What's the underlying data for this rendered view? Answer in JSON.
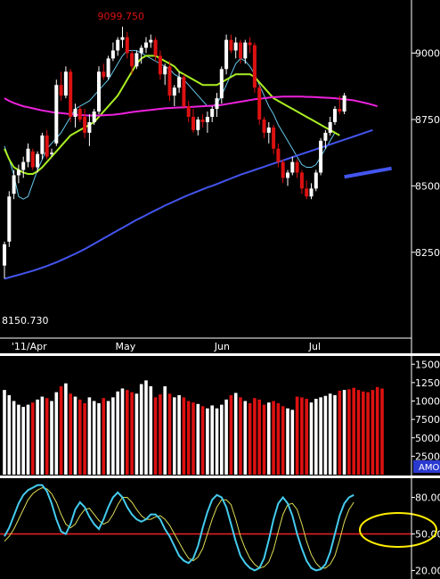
{
  "colors": {
    "background": "#000000",
    "bull": "#ffffff",
    "bear": "#dd1111",
    "ma_fast": "#66c8ee",
    "ma_mid": "#aaee22",
    "ma_slow": "#ee22dd",
    "ma_long": "#4455ee",
    "stoch_k": "#44ccee",
    "stoch_d": "#dddd55",
    "ref_line": "#ee2222",
    "axis_text": "#ffffff",
    "highlight": "#ffee00",
    "tag_bg": "#2a3ad0"
  },
  "chart_data": [
    {
      "type": "candlestick",
      "panel": "price",
      "x_labels": [
        "'11/Apr",
        "May",
        "Jun",
        "Jul"
      ],
      "x_label_bar_index": [
        3,
        25,
        46,
        66
      ],
      "y_ticks": [
        9000,
        8750,
        8500,
        8250
      ],
      "ylim": [
        7930,
        9200
      ],
      "annotations": {
        "high": "9099.750",
        "low": "8150.730"
      },
      "high_bar_index": 25,
      "low_bar_index": 0,
      "ohlc": [
        [
          8200,
          8290,
          8150.73,
          8280
        ],
        [
          8290,
          8480,
          8270,
          8460
        ],
        [
          8470,
          8560,
          8450,
          8540
        ],
        [
          8540,
          8580,
          8510,
          8560
        ],
        [
          8560,
          8610,
          8530,
          8590
        ],
        [
          8590,
          8660,
          8570,
          8640
        ],
        [
          8630,
          8640,
          8560,
          8570
        ],
        [
          8570,
          8630,
          8550,
          8620
        ],
        [
          8620,
          8700,
          8600,
          8690
        ],
        [
          8690,
          8710,
          8600,
          8610
        ],
        [
          8620,
          8640,
          8610,
          8625
        ],
        [
          8660,
          8900,
          8650,
          8880
        ],
        [
          8880,
          8930,
          8820,
          8840
        ],
        [
          8840,
          8950,
          8830,
          8930
        ],
        [
          8930,
          8940,
          8740,
          8760
        ],
        [
          8760,
          8810,
          8720,
          8790
        ],
        [
          8790,
          8800,
          8740,
          8750
        ],
        [
          8760,
          8790,
          8680,
          8700
        ],
        [
          8700,
          8770,
          8650,
          8740
        ],
        [
          8740,
          8790,
          8730,
          8780
        ],
        [
          8780,
          8950,
          8770,
          8930
        ],
        [
          8930,
          8960,
          8900,
          8910
        ],
        [
          8910,
          8990,
          8900,
          8980
        ],
        [
          8980,
          9040,
          8970,
          9010
        ],
        [
          9010,
          9060,
          8990,
          9050
        ],
        [
          9050,
          9099.75,
          9020,
          9060
        ],
        [
          9060,
          9080,
          8980,
          9000
        ],
        [
          9000,
          9010,
          8920,
          8950
        ],
        [
          8950,
          9010,
          8940,
          9000
        ],
        [
          9000,
          9030,
          8960,
          9020
        ],
        [
          9020,
          9060,
          9000,
          9040
        ],
        [
          9040,
          9070,
          9020,
          9050
        ],
        [
          9050,
          9060,
          8970,
          8990
        ],
        [
          8990,
          9010,
          8900,
          8920
        ],
        [
          8920,
          8960,
          8880,
          8950
        ],
        [
          8950,
          8970,
          8820,
          8840
        ],
        [
          8840,
          8880,
          8800,
          8870
        ],
        [
          8870,
          8930,
          8850,
          8910
        ],
        [
          8910,
          8920,
          8790,
          8800
        ],
        [
          8800,
          8820,
          8740,
          8760
        ],
        [
          8760,
          8790,
          8700,
          8710
        ],
        [
          8710,
          8760,
          8690,
          8750
        ],
        [
          8750,
          8770,
          8720,
          8740
        ],
        [
          8740,
          8780,
          8700,
          8760
        ],
        [
          8760,
          8800,
          8740,
          8790
        ],
        [
          8790,
          8850,
          8760,
          8830
        ],
        [
          8830,
          8950,
          8810,
          8940
        ],
        [
          8940,
          9070,
          8920,
          9050
        ],
        [
          9050,
          9070,
          9000,
          9010
        ],
        [
          9010,
          9060,
          8980,
          9040
        ],
        [
          9040,
          9050,
          8960,
          8980
        ],
        [
          8980,
          9050,
          8960,
          9040
        ],
        [
          9040,
          9060,
          9000,
          9030
        ],
        [
          9030,
          9040,
          8850,
          8870
        ],
        [
          8870,
          8880,
          8730,
          8750
        ],
        [
          8750,
          8760,
          8680,
          8700
        ],
        [
          8700,
          8740,
          8660,
          8720
        ],
        [
          8720,
          8730,
          8620,
          8640
        ],
        [
          8640,
          8660,
          8570,
          8590
        ],
        [
          8590,
          8600,
          8510,
          8530
        ],
        [
          8530,
          8560,
          8500,
          8550
        ],
        [
          8550,
          8610,
          8540,
          8590
        ],
        [
          8590,
          8600,
          8530,
          8550
        ],
        [
          8550,
          8560,
          8470,
          8490
        ],
        [
          8490,
          8520,
          8450,
          8460
        ],
        [
          8460,
          8510,
          8450,
          8490
        ],
        [
          8490,
          8560,
          8480,
          8550
        ],
        [
          8550,
          8680,
          8540,
          8670
        ],
        [
          8670,
          8710,
          8640,
          8700
        ],
        [
          8700,
          8760,
          8690,
          8740
        ],
        [
          8740,
          8800,
          8730,
          8790
        ],
        [
          8790,
          8840,
          8770,
          8780
        ],
        [
          8780,
          8850,
          8770,
          8840
        ]
      ],
      "series": [
        {
          "name": "",
          "color_key": "ma_fast",
          "start": 0,
          "values": [
            8650,
            8600,
            8540,
            8460,
            8450,
            8460,
            8510,
            8560,
            8600,
            8640,
            8660,
            8680,
            8700,
            8730,
            8760,
            8790,
            8800,
            8810,
            8820,
            8840,
            8860,
            8880,
            8900,
            8930,
            8960,
            8990,
            9010,
            9010,
            9010,
            9000,
            8990,
            8980,
            8970,
            8960,
            8950,
            8940,
            8920,
            8910,
            8900,
            8880,
            8860,
            8840,
            8820,
            8800,
            8800,
            8810,
            8840,
            8880,
            8920,
            8960,
            8980,
            8970,
            8950,
            8920,
            8880,
            8840,
            8800,
            8770,
            8730,
            8700,
            8670,
            8640,
            8610,
            8580,
            8570,
            8570,
            8580,
            8610,
            8640,
            8670,
            8700
          ]
        },
        {
          "name": "",
          "color_key": "ma_mid",
          "start": 0,
          "values": [
            8640,
            8600,
            8570,
            8560,
            8550,
            8545,
            8545,
            8555,
            8570,
            8590,
            8610,
            8630,
            8650,
            8670,
            8690,
            8700,
            8710,
            8720,
            8730,
            8740,
            8760,
            8780,
            8800,
            8820,
            8840,
            8870,
            8900,
            8930,
            8960,
            8980,
            8990,
            8990,
            8990,
            8980,
            8970,
            8960,
            8950,
            8930,
            8920,
            8910,
            8900,
            8890,
            8880,
            8880,
            8880,
            8880,
            8890,
            8900,
            8910,
            8920,
            8920,
            8920,
            8920,
            8910,
            8890,
            8870,
            8850,
            8830,
            8820,
            8810,
            8800,
            8790,
            8780,
            8770,
            8760,
            8750,
            8740,
            8730,
            8720,
            8710,
            8700,
            8690
          ]
        },
        {
          "name": "",
          "color_key": "ma_slow",
          "start": 0,
          "values": [
            8830,
            8820,
            8812,
            8806,
            8800,
            8796,
            8792,
            8788,
            8784,
            8781,
            8778,
            8776,
            8774,
            8772,
            8770,
            8768,
            8767,
            8766,
            8765,
            8765,
            8765,
            8766,
            8767,
            8768,
            8770,
            8772,
            8775,
            8778,
            8780,
            8782,
            8784,
            8786,
            8788,
            8790,
            8792,
            8793,
            8794,
            8795,
            8796,
            8797,
            8798,
            8799,
            8800,
            8801,
            8802,
            8803,
            8805,
            8808,
            8811,
            8814,
            8817,
            8820,
            8823,
            8826,
            8828,
            8830,
            8832,
            8834,
            8835,
            8836,
            8836,
            8836,
            8836,
            8836,
            8835,
            8835,
            8834,
            8833,
            8832,
            8831,
            8830,
            8828,
            8826,
            8824,
            8822,
            8818,
            8814,
            8810,
            8805,
            8800
          ]
        },
        {
          "name": "",
          "color_key": "ma_long",
          "start": 0,
          "values": [
            8150,
            8155,
            8160,
            8165,
            8170,
            8175,
            8180,
            8186,
            8192,
            8198,
            8205,
            8212,
            8220,
            8228,
            8236,
            8244,
            8253,
            8262,
            8272,
            8282,
            8292,
            8302,
            8312,
            8322,
            8332,
            8342,
            8352,
            8362,
            8372,
            8381,
            8390,
            8399,
            8408,
            8417,
            8426,
            8434,
            8442,
            8450,
            8458,
            8466,
            8473,
            8480,
            8487,
            8494,
            8500,
            8507,
            8514,
            8521,
            8528,
            8535,
            8542,
            8548,
            8554,
            8560,
            8566,
            8572,
            8578,
            8584,
            8590,
            8596,
            8602,
            8608,
            8614,
            8620,
            8626,
            8632,
            8638,
            8644,
            8650,
            8656,
            8662,
            8668,
            8674,
            8680,
            8686,
            8692,
            8698,
            8704,
            8710
          ]
        }
      ],
      "projection": {
        "color_key": "ma_long",
        "from": [
          72,
          8534
        ],
        "to": [
          82,
          8566
        ]
      }
    },
    {
      "type": "bar",
      "panel": "volume",
      "y_ticks": [
        15000,
        12500,
        10000,
        7500,
        5000,
        2500
      ],
      "ylim": [
        0,
        16000
      ],
      "tag": "AMO",
      "values": [
        11500,
        10800,
        10000,
        9500,
        9200,
        9500,
        9800,
        10200,
        10600,
        10400,
        10000,
        11200,
        12000,
        12400,
        11000,
        10600,
        10200,
        9700,
        10500,
        10000,
        9700,
        10400,
        10000,
        10500,
        11300,
        11700,
        11500,
        11200,
        11000,
        12300,
        12800,
        12000,
        10500,
        10900,
        12000,
        11000,
        10500,
        10800,
        10500,
        10000,
        9800,
        9600,
        9300,
        9000,
        9400,
        9000,
        9500,
        10200,
        10800,
        11100,
        10500,
        10000,
        9700,
        10400,
        10200,
        9500,
        9800,
        10000,
        9700,
        9300,
        9000,
        8800,
        10600,
        10500,
        10300,
        9800,
        10300,
        10500,
        10700,
        11000,
        10800,
        11400,
        11500,
        11600,
        11800,
        11500,
        11300,
        11200,
        11500,
        11900,
        11700
      ]
    },
    {
      "type": "line",
      "panel": "stochastic",
      "y_ticks": [
        80,
        50,
        20
      ],
      "ylim": [
        13,
        95
      ],
      "reference_value": 50,
      "series": [
        {
          "name": "",
          "color_key": "stoch_k",
          "values": [
            48,
            55,
            65,
            75,
            82,
            86,
            88,
            90,
            90,
            85,
            75,
            62,
            52,
            50,
            58,
            70,
            76,
            72,
            64,
            58,
            54,
            62,
            72,
            80,
            84,
            80,
            72,
            66,
            62,
            60,
            62,
            66,
            66,
            62,
            54,
            48,
            40,
            32,
            28,
            26,
            30,
            40,
            55,
            68,
            78,
            82,
            80,
            72,
            58,
            44,
            32,
            26,
            22,
            20,
            22,
            30,
            45,
            62,
            75,
            80,
            75,
            65,
            50,
            38,
            28,
            22,
            20,
            21,
            25,
            35,
            50,
            65,
            75,
            80,
            82
          ]
        },
        {
          "name": "",
          "color_key": "stoch_d",
          "values": [
            44,
            48,
            54,
            62,
            70,
            78,
            83,
            86,
            88,
            87,
            83,
            76,
            66,
            58,
            55,
            58,
            65,
            70,
            71,
            66,
            61,
            58,
            60,
            66,
            74,
            80,
            80,
            76,
            70,
            65,
            62,
            62,
            64,
            65,
            62,
            57,
            50,
            43,
            36,
            30,
            28,
            31,
            38,
            50,
            62,
            72,
            78,
            78,
            74,
            62,
            48,
            38,
            30,
            25,
            22,
            23,
            27,
            37,
            52,
            66,
            74,
            75,
            70,
            58,
            44,
            33,
            26,
            22,
            22,
            25,
            32,
            45,
            60,
            70,
            76
          ]
        }
      ]
    }
  ]
}
